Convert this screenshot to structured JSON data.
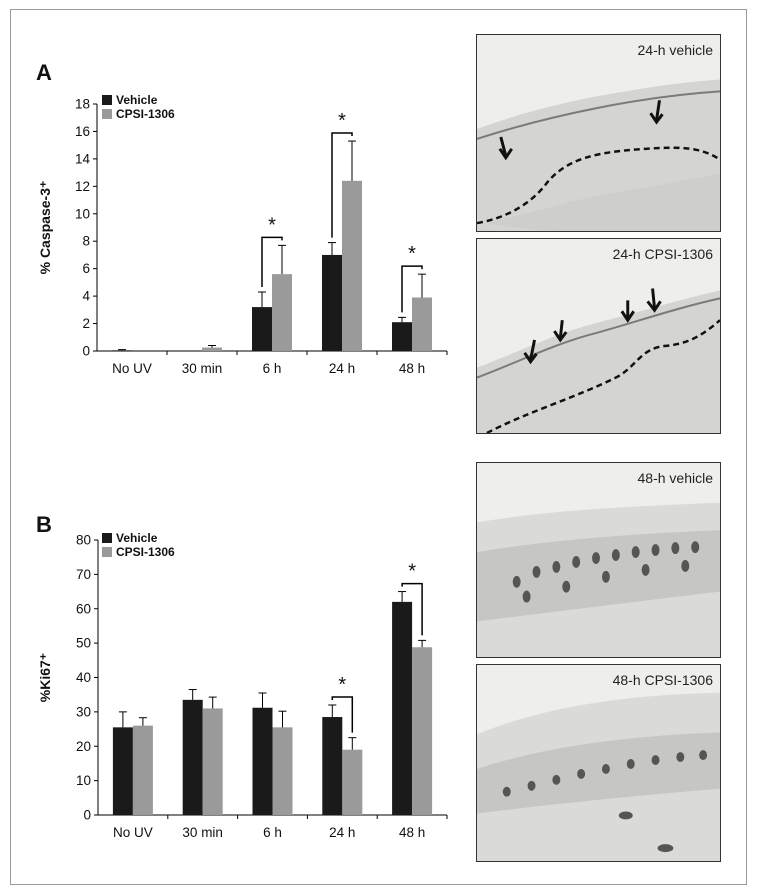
{
  "figure": {
    "panel_a_letter": "A",
    "panel_b_letter": "B",
    "images": [
      {
        "label": "24-h vehicle"
      },
      {
        "label": "24-h CPSI-1306"
      },
      {
        "label": "48-h vehicle"
      },
      {
        "label": "48-h CPSI-1306"
      }
    ]
  },
  "colors": {
    "vehicle": "#1a1a1a",
    "cpsi": "#9a9a9a"
  },
  "chart_data": [
    {
      "type": "bar",
      "ylabel": "% Caspase-3⁺",
      "xlabel": "",
      "ylim": [
        0,
        18
      ],
      "yticks": [
        0,
        2,
        4,
        6,
        8,
        10,
        12,
        14,
        16,
        18
      ],
      "categories": [
        "No UV",
        "30 min",
        "6 h",
        "24 h",
        "48 h"
      ],
      "legend_position": "top-left",
      "series": [
        {
          "name": "Vehicle",
          "values": [
            0.05,
            0,
            3.2,
            7.0,
            2.1
          ],
          "errors": [
            0.05,
            0,
            1.1,
            0.9,
            0.35
          ]
        },
        {
          "name": "CPSI-1306",
          "values": [
            0,
            0.25,
            5.6,
            12.4,
            3.9
          ],
          "errors": [
            0,
            0.15,
            2.1,
            2.9,
            1.7
          ]
        }
      ],
      "significance": [
        {
          "category": "6 h",
          "label": "*"
        },
        {
          "category": "24 h",
          "label": "*"
        },
        {
          "category": "48 h",
          "label": "*"
        }
      ]
    },
    {
      "type": "bar",
      "ylabel": "%Ki67⁺",
      "xlabel": "",
      "ylim": [
        0,
        80
      ],
      "yticks": [
        0,
        10,
        20,
        30,
        40,
        50,
        60,
        70,
        80
      ],
      "categories": [
        "No UV",
        "30 min",
        "6 h",
        "24 h",
        "48 h"
      ],
      "legend_position": "top-left",
      "series": [
        {
          "name": "Vehicle",
          "values": [
            25.5,
            33.5,
            31.2,
            28.5,
            62.0
          ],
          "errors": [
            4.5,
            3.0,
            4.3,
            3.5,
            3.0
          ]
        },
        {
          "name": "CPSI-1306",
          "values": [
            26.0,
            31.0,
            25.5,
            19.0,
            48.8
          ],
          "errors": [
            2.3,
            3.3,
            4.7,
            3.5,
            2.0
          ]
        }
      ],
      "significance": [
        {
          "category": "24 h",
          "label": "*"
        },
        {
          "category": "48 h",
          "label": "*"
        }
      ]
    }
  ]
}
